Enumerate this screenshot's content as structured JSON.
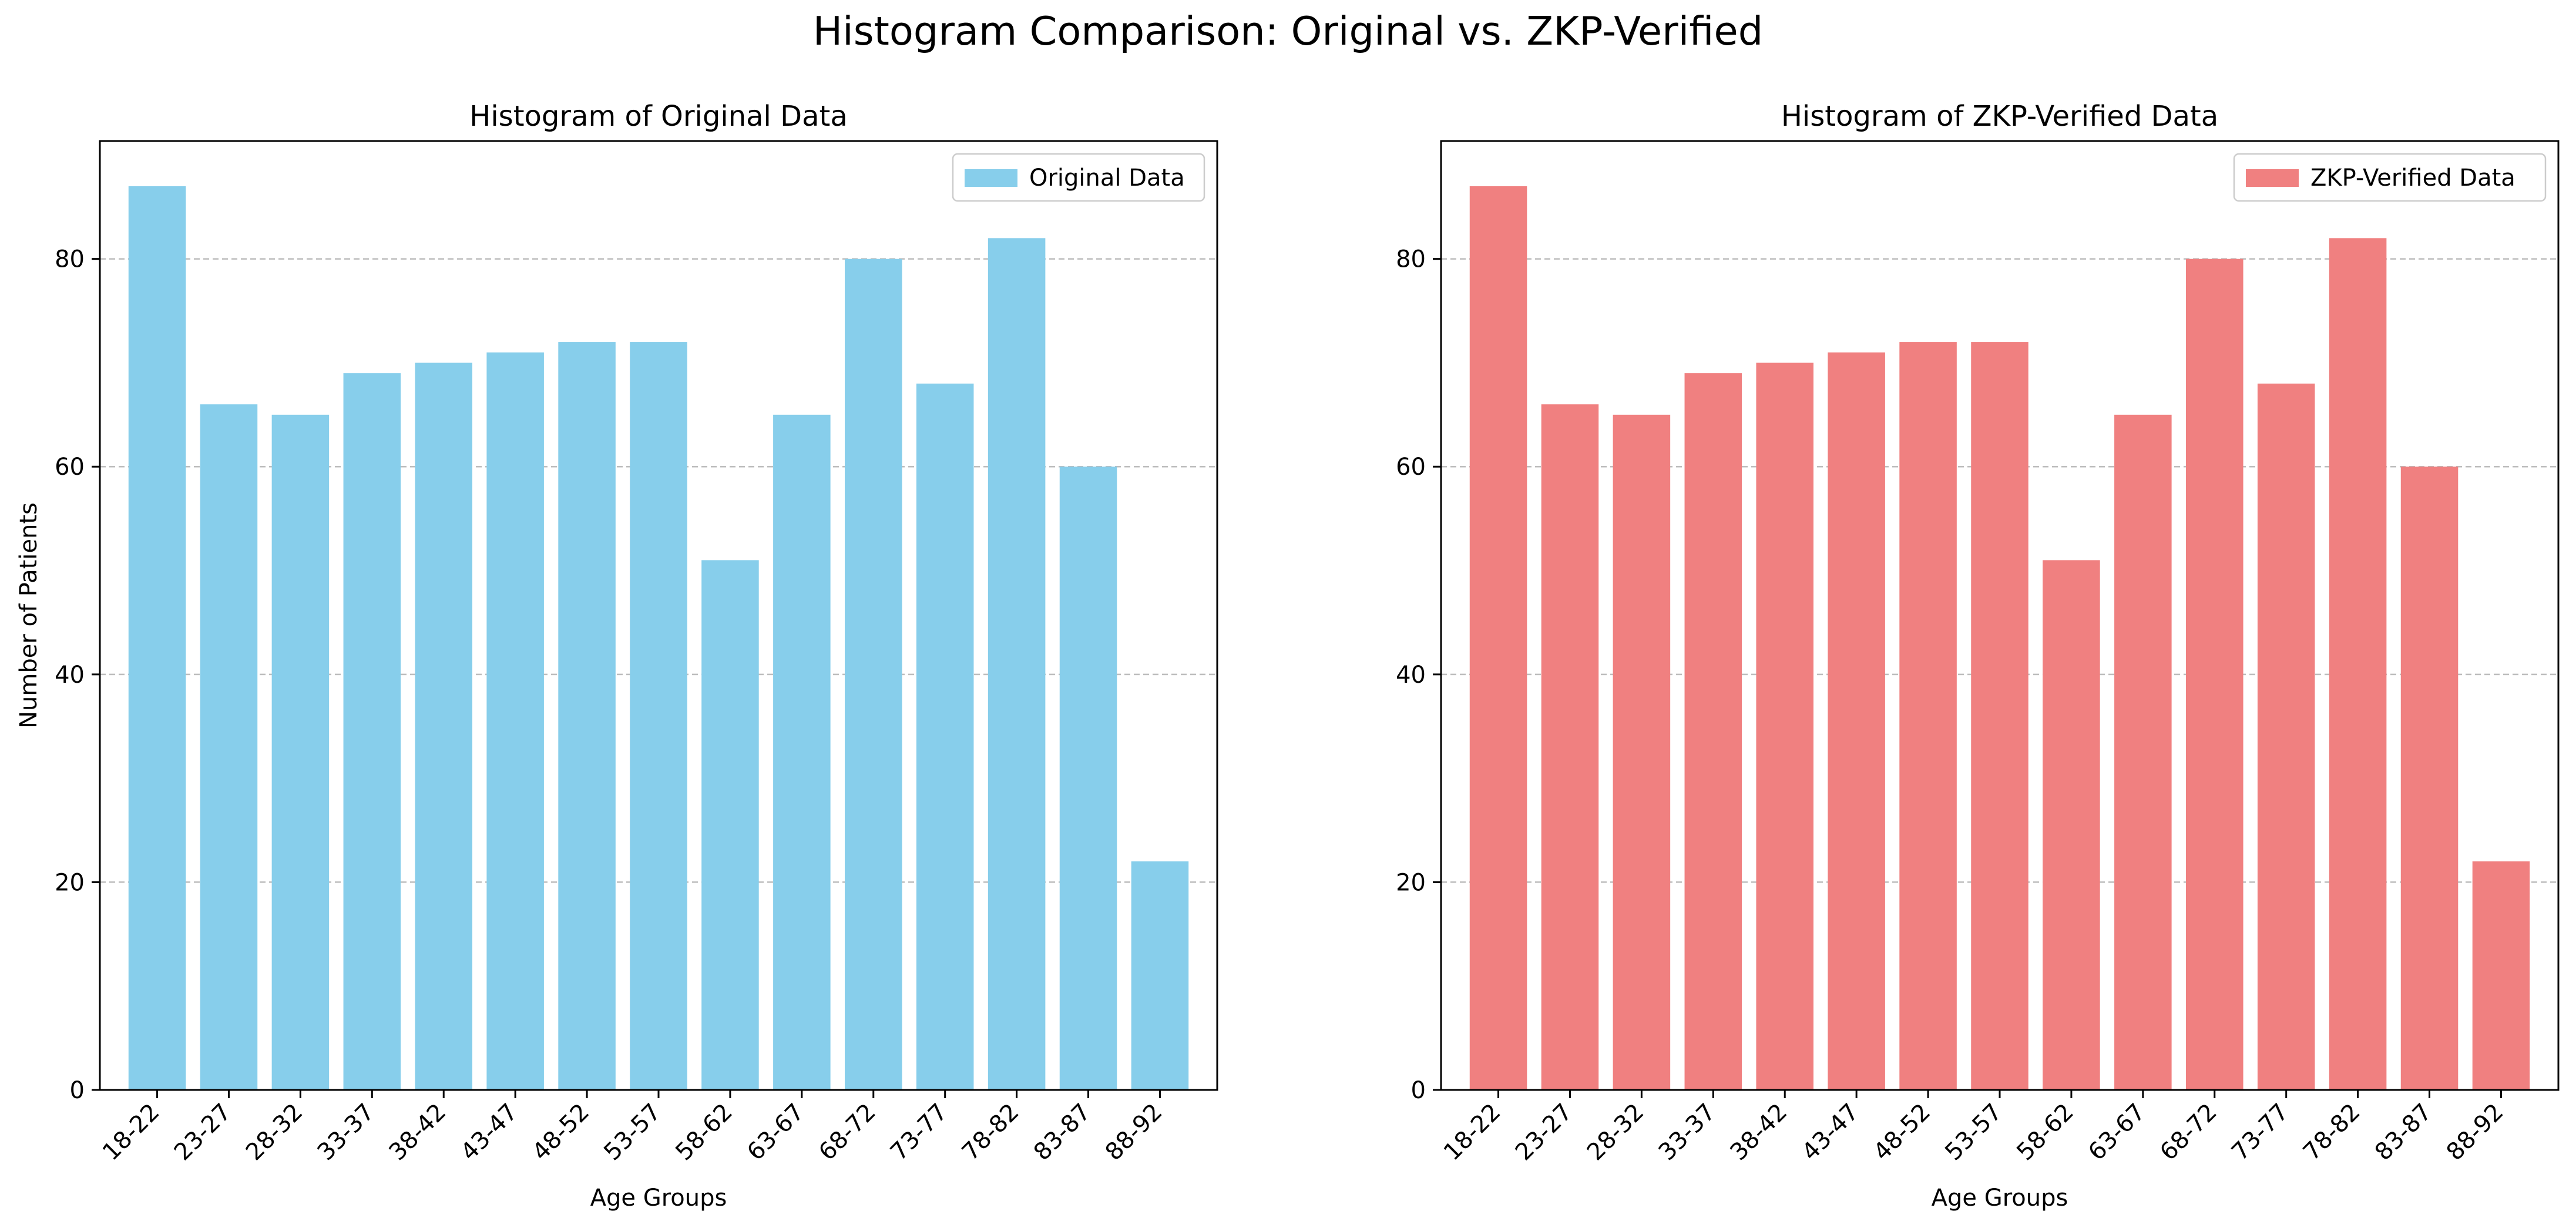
{
  "suptitle": "Histogram Comparison: Original vs. ZKP-Verified",
  "chart_data": [
    {
      "type": "bar",
      "title": "Histogram of Original Data",
      "xlabel": "Age Groups",
      "ylabel": "Number of Patients",
      "categories": [
        "18-22",
        "23-27",
        "28-32",
        "33-37",
        "38-42",
        "43-47",
        "48-52",
        "53-57",
        "58-62",
        "63-67",
        "68-72",
        "73-77",
        "78-82",
        "83-87",
        "88-92"
      ],
      "series": [
        {
          "name": "Original Data",
          "values": [
            87,
            66,
            65,
            69,
            70,
            71,
            72,
            72,
            51,
            65,
            80,
            68,
            82,
            60,
            22
          ],
          "color": "#87ceeb"
        }
      ],
      "ylim": [
        0,
        91.35
      ],
      "yticks": [
        0,
        20,
        40,
        60,
        80
      ],
      "grid": "y-dashed",
      "legend": "top-right"
    },
    {
      "type": "bar",
      "title": "Histogram of ZKP-Verified Data",
      "xlabel": "Age Groups",
      "ylabel": "",
      "categories": [
        "18-22",
        "23-27",
        "28-32",
        "33-37",
        "38-42",
        "43-47",
        "48-52",
        "53-57",
        "58-62",
        "63-67",
        "68-72",
        "73-77",
        "78-82",
        "83-87",
        "88-92"
      ],
      "series": [
        {
          "name": "ZKP-Verified Data",
          "values": [
            87,
            66,
            65,
            69,
            70,
            71,
            72,
            72,
            51,
            65,
            80,
            68,
            82,
            60,
            22
          ],
          "color": "#f08080"
        }
      ],
      "ylim": [
        0,
        91.35
      ],
      "yticks": [
        0,
        20,
        40,
        60,
        80
      ],
      "grid": "y-dashed",
      "legend": "top-right"
    }
  ]
}
